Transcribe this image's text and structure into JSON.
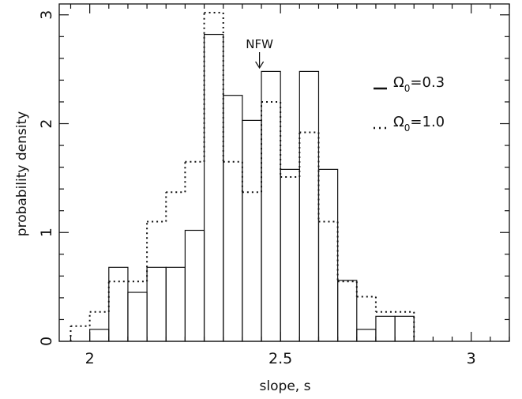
{
  "chart_data": {
    "type": "bar",
    "title": "",
    "xlabel": "slope, s",
    "ylabel": "probability density",
    "xlim": [
      1.92,
      3.1
    ],
    "ylim": [
      0,
      3.1
    ],
    "xticks": [
      2,
      2.5,
      3
    ],
    "xtick_labels": [
      "2",
      "2.5",
      "3"
    ],
    "yticks": [
      0,
      1,
      2,
      3
    ],
    "ytick_labels": [
      "0",
      "1",
      "2",
      "3"
    ],
    "grid": false,
    "bin_edges": [
      1.95,
      2.0,
      2.05,
      2.1,
      2.15,
      2.2,
      2.25,
      2.3,
      2.35,
      2.4,
      2.45,
      2.5,
      2.55,
      2.6,
      2.65,
      2.7,
      2.75,
      2.8,
      2.85
    ],
    "series": [
      {
        "name": "Ω0=0.3",
        "style": "solid",
        "values": [
          0,
          0.11,
          0.68,
          0.45,
          0.68,
          0.68,
          1.02,
          2.82,
          2.26,
          2.03,
          2.48,
          1.58,
          2.48,
          1.58,
          0.56,
          0.11,
          0.23,
          0.23
        ]
      },
      {
        "name": "Ω0=1.0",
        "style": "dotted",
        "values": [
          0.14,
          0.27,
          0.55,
          0.55,
          1.1,
          1.37,
          1.65,
          3.02,
          1.65,
          1.37,
          2.2,
          1.51,
          1.92,
          1.1,
          0.55,
          0.41,
          0.27,
          0.27
        ]
      }
    ],
    "legend": {
      "placement": "right",
      "solid_label_main": "Ω",
      "solid_label_sub": "0",
      "solid_label_rest": "=0.3",
      "dotted_label_main": "Ω",
      "dotted_label_sub": "0",
      "dotted_label_rest": "=1.0"
    },
    "annotations": [
      {
        "text": "NFW",
        "x": 2.445,
        "arrow": "down"
      }
    ]
  }
}
